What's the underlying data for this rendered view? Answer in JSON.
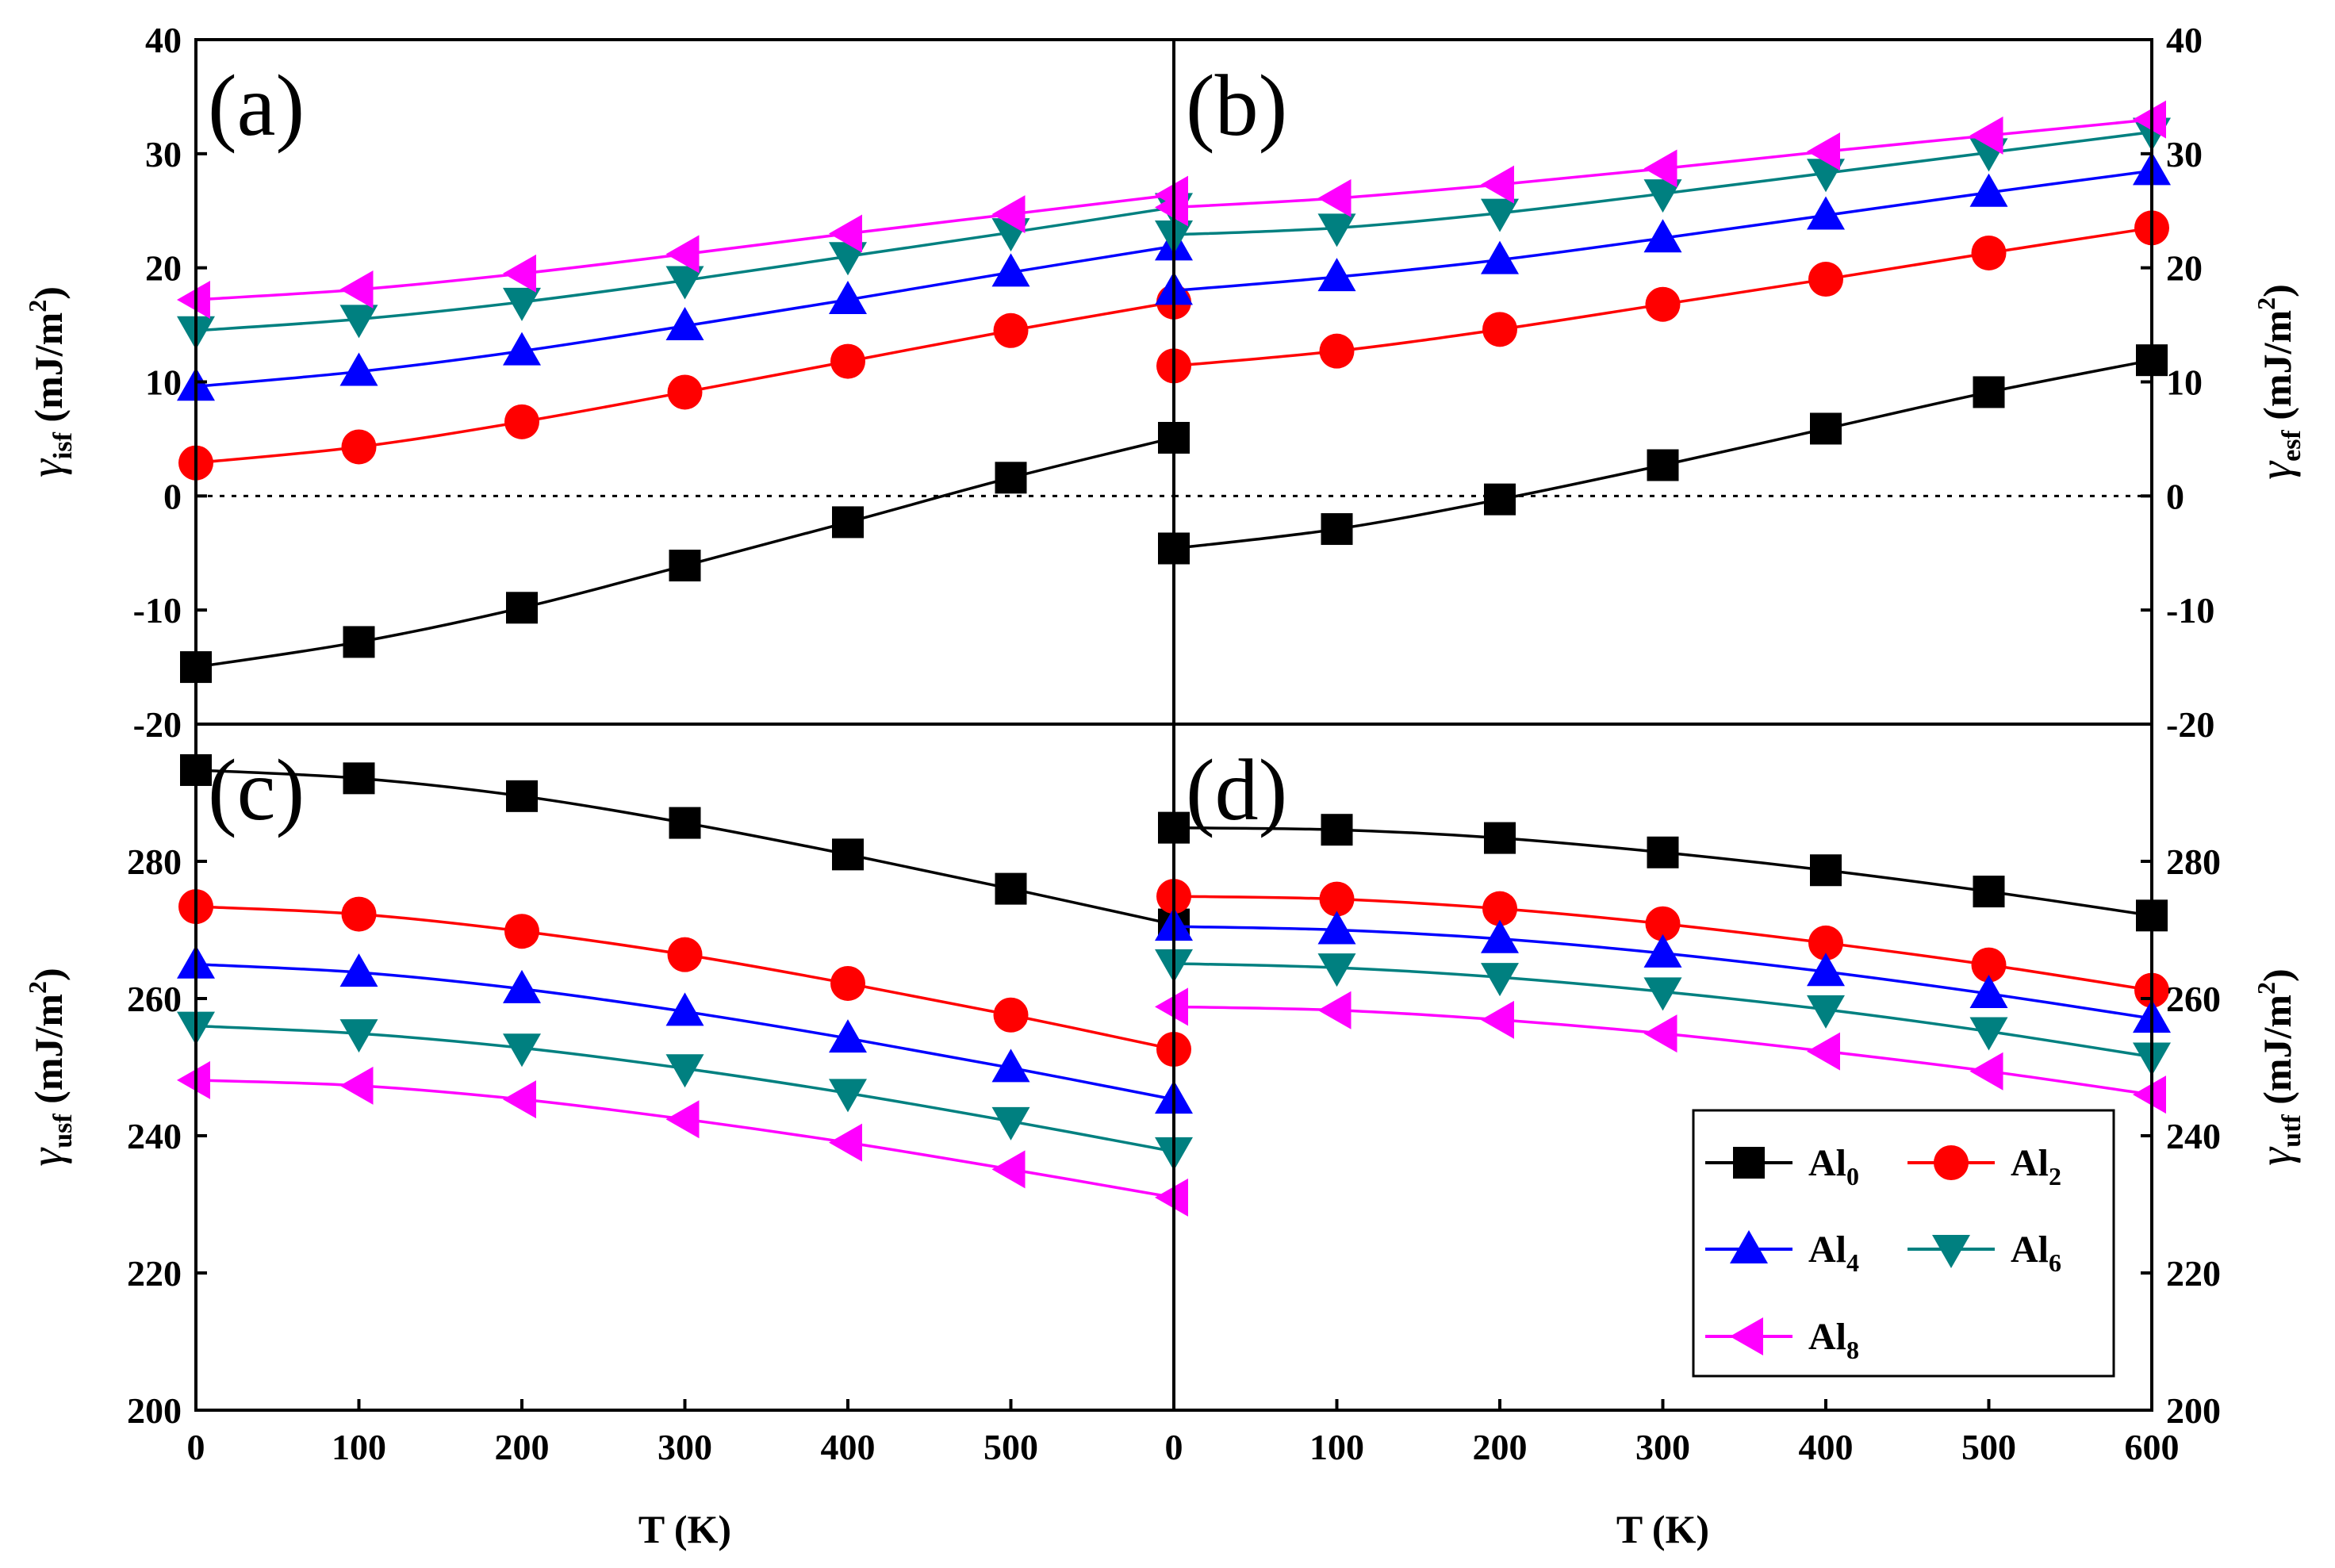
{
  "chart_data": [
    {
      "id": "a",
      "panel_label": "(a)",
      "type": "line",
      "ylabel": {
        "main": "γ",
        "sub": "isf",
        "unit": " (mJ/m",
        "sup": "2",
        "close": ")"
      },
      "xlabel": "",
      "x": [
        0,
        100,
        200,
        300,
        400,
        500,
        600
      ],
      "xlim": [
        0,
        600
      ],
      "ylim": [
        -20,
        40
      ],
      "yticks": [
        -20,
        -10,
        0,
        10,
        20,
        30,
        40
      ],
      "ytick_labels": [
        "-20",
        "-10",
        "0",
        "10",
        "20",
        "30",
        "40"
      ],
      "reference_line": 0,
      "series": [
        {
          "name": "Al0",
          "values": [
            -15.0,
            -12.8,
            -9.8,
            -6.1,
            -2.3,
            1.6,
            5.1
          ]
        },
        {
          "name": "Al2",
          "values": [
            2.9,
            4.3,
            6.5,
            9.1,
            11.8,
            14.5,
            17.0
          ]
        },
        {
          "name": "Al4",
          "values": [
            9.6,
            10.9,
            12.7,
            14.9,
            17.2,
            19.6,
            21.9
          ]
        },
        {
          "name": "Al6",
          "values": [
            14.5,
            15.5,
            17.0,
            18.9,
            21.0,
            23.1,
            25.3
          ]
        },
        {
          "name": "Al8",
          "values": [
            17.2,
            18.1,
            19.5,
            21.2,
            23.0,
            24.7,
            26.4
          ]
        }
      ]
    },
    {
      "id": "b",
      "panel_label": "(b)",
      "type": "line",
      "ylabel": {
        "main": "γ",
        "sub": "esf",
        "unit": " (mJ/m",
        "sup": "2",
        "close": ")"
      },
      "xlabel": "",
      "x": [
        0,
        100,
        200,
        300,
        400,
        500,
        600
      ],
      "xlim": [
        0,
        600
      ],
      "ylim": [
        -20,
        40
      ],
      "yticks": [
        -20,
        -10,
        0,
        10,
        20,
        30,
        40
      ],
      "ytick_labels": [
        "-20",
        "-10",
        "0",
        "10",
        "20",
        "30",
        "40"
      ],
      "reference_line": 0,
      "series": [
        {
          "name": "Al0",
          "values": [
            -4.6,
            -2.9,
            -0.3,
            2.7,
            5.9,
            9.1,
            11.9
          ]
        },
        {
          "name": "Al2",
          "values": [
            11.4,
            12.7,
            14.6,
            16.8,
            19.0,
            21.3,
            23.5
          ]
        },
        {
          "name": "Al4",
          "values": [
            18.0,
            19.2,
            20.7,
            22.6,
            24.6,
            26.6,
            28.5
          ]
        },
        {
          "name": "Al6",
          "values": [
            22.9,
            23.5,
            24.8,
            26.5,
            28.3,
            30.1,
            31.9
          ]
        },
        {
          "name": "Al8",
          "values": [
            25.3,
            26.1,
            27.3,
            28.7,
            30.2,
            31.6,
            33.0
          ]
        }
      ]
    },
    {
      "id": "c",
      "panel_label": "(c)",
      "type": "line",
      "ylabel": {
        "main": "γ",
        "sub": "usf",
        "unit": " (mJ/m",
        "sup": "2",
        "close": ")"
      },
      "xlabel": "T (K)",
      "x": [
        0,
        100,
        200,
        300,
        400,
        500,
        600
      ],
      "xlim": [
        0,
        600
      ],
      "ylim": [
        200,
        300
      ],
      "yticks": [
        200,
        220,
        240,
        260,
        280
      ],
      "ytick_labels": [
        "200",
        "220",
        "240",
        "260",
        "280"
      ],
      "xticks": [
        0,
        100,
        200,
        300,
        400,
        500
      ],
      "xtick_labels": [
        "0",
        "100",
        "200",
        "300",
        "400",
        "500"
      ],
      "series": [
        {
          "name": "Al0",
          "values": [
            293.3,
            292.1,
            289.5,
            285.6,
            281.0,
            276.0,
            270.8
          ]
        },
        {
          "name": "Al2",
          "values": [
            273.4,
            272.3,
            269.8,
            266.4,
            262.2,
            257.6,
            252.6
          ]
        },
        {
          "name": "Al4",
          "values": [
            265.0,
            263.8,
            261.4,
            258.1,
            254.2,
            249.9,
            245.3
          ]
        },
        {
          "name": "Al6",
          "values": [
            256.0,
            254.9,
            252.8,
            249.8,
            246.2,
            242.1,
            237.7
          ]
        },
        {
          "name": "Al8",
          "values": [
            248.1,
            247.3,
            245.3,
            242.4,
            239.0,
            235.1,
            231.0
          ]
        }
      ]
    },
    {
      "id": "d",
      "panel_label": "(d)",
      "type": "line",
      "ylabel": {
        "main": "γ",
        "sub": "utf",
        "unit": " (mJ/m",
        "sup": "2",
        "close": ")"
      },
      "xlabel": "T (K)",
      "x": [
        0,
        100,
        200,
        300,
        400,
        500,
        600
      ],
      "xlim": [
        0,
        600
      ],
      "ylim": [
        200,
        300
      ],
      "yticks": [
        200,
        220,
        240,
        260,
        280
      ],
      "ytick_labels": [
        "200",
        "220",
        "240",
        "260",
        "280"
      ],
      "xticks": [
        0,
        100,
        200,
        300,
        400,
        500,
        600
      ],
      "xtick_labels": [
        "0",
        "100",
        "200",
        "300",
        "400",
        "500",
        "600"
      ],
      "series": [
        {
          "name": "Al0",
          "values": [
            284.9,
            284.6,
            283.4,
            281.3,
            278.7,
            275.6,
            272.1
          ]
        },
        {
          "name": "Al2",
          "values": [
            274.9,
            274.5,
            273.1,
            270.9,
            268.1,
            264.9,
            261.2
          ]
        },
        {
          "name": "Al4",
          "values": [
            270.5,
            270.0,
            268.7,
            266.6,
            263.9,
            260.7,
            257.1
          ]
        },
        {
          "name": "Al6",
          "values": [
            265.1,
            264.5,
            263.1,
            261.0,
            258.4,
            255.2,
            251.5
          ]
        },
        {
          "name": "Al8",
          "values": [
            258.8,
            258.3,
            256.9,
            254.9,
            252.3,
            249.4,
            246.0
          ]
        }
      ]
    }
  ],
  "legend": {
    "location": "lower-right of panel (d)",
    "entries": [
      {
        "base": "Al",
        "sub": "0",
        "color": "#000000",
        "marker": "square"
      },
      {
        "base": "Al",
        "sub": "2",
        "color": "#ff0000",
        "marker": "circle"
      },
      {
        "base": "Al",
        "sub": "4",
        "color": "#0000ff",
        "marker": "triangle-up"
      },
      {
        "base": "Al",
        "sub": "6",
        "color": "#008080",
        "marker": "triangle-down"
      },
      {
        "base": "Al",
        "sub": "8",
        "color": "#ff00ff",
        "marker": "triangle-left"
      }
    ]
  },
  "colors": {
    "Al0": "#000000",
    "Al2": "#ff0000",
    "Al4": "#0000ff",
    "Al6": "#008080",
    "Al8": "#ff00ff"
  }
}
